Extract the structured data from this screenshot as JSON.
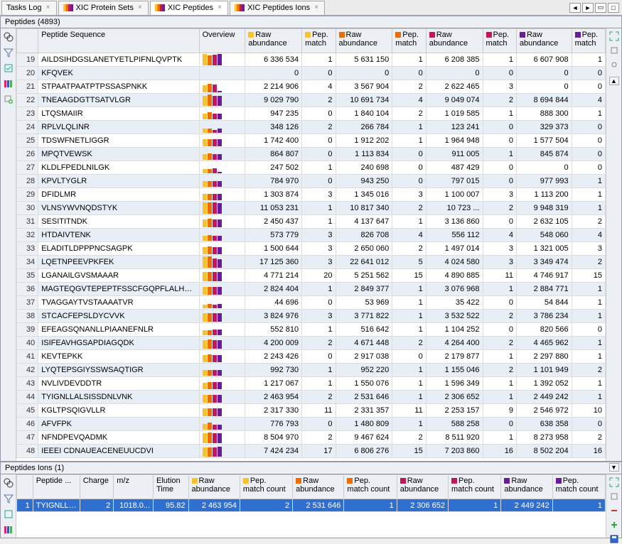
{
  "tabs": [
    {
      "label": "Tasks Log",
      "active": false,
      "icon": false
    },
    {
      "label": "XIC Protein Sets",
      "active": false,
      "icon": true
    },
    {
      "label": "XIC Peptides",
      "active": true,
      "icon": true
    },
    {
      "label": "XIC Peptides Ions",
      "active": false,
      "icon": true
    }
  ],
  "peptides_header": "Peptides (4893)",
  "ions_header": "Peptides Ions (1)",
  "columns": {
    "rownum": "",
    "sequence": "Peptide Sequence",
    "overview": "Overview",
    "raw_abundance": "Raw abundance",
    "pep_match": "Pep. match"
  },
  "markers": {
    "c1": "#fbc02d",
    "c2": "#ef6c00",
    "c3": "#c2185b",
    "c4": "#6a1b9a"
  },
  "rows": [
    {
      "n": 19,
      "seq": "AILDSIHDGSLANETYETLPIFNLQVPTK",
      "ov": [
        16,
        14,
        15,
        16
      ],
      "ra1": "6 336 534",
      "pm1": 1,
      "ra2": "5 631 150",
      "pm2": 1,
      "ra3": "6 208 385",
      "pm3": 1,
      "ra4": "6 607 908",
      "pm4": 1
    },
    {
      "n": 20,
      "seq": "KFQVEK",
      "ov": [
        0,
        0,
        0,
        0
      ],
      "ra1": "0",
      "pm1": 0,
      "ra2": "0",
      "pm2": 0,
      "ra3": "0",
      "pm3": 0,
      "ra4": "0",
      "pm4": 0
    },
    {
      "n": 21,
      "seq": "STPAATPAATPTPSSASPNKK",
      "ov": [
        10,
        12,
        11,
        2
      ],
      "ra1": "2 214 906",
      "pm1": 4,
      "ra2": "3 567 904",
      "pm2": 2,
      "ra3": "2 622 465",
      "pm3": 3,
      "ra4": "0",
      "pm4": 0
    },
    {
      "n": 22,
      "seq": "TNEAAGDGTTSATVLGR",
      "ov": [
        14,
        16,
        14,
        14
      ],
      "ra1": "9 029 790",
      "pm1": 2,
      "ra2": "10 691 734",
      "pm2": 4,
      "ra3": "9 049 074",
      "pm3": 2,
      "ra4": "8 694 844",
      "pm4": 4
    },
    {
      "n": 23,
      "seq": "LTQSMAIIR",
      "ov": [
        8,
        10,
        8,
        8
      ],
      "ra1": "947 235",
      "pm1": 0,
      "ra2": "1 840 104",
      "pm2": 2,
      "ra3": "1 019 585",
      "pm3": 1,
      "ra4": "888 300",
      "pm4": 1
    },
    {
      "n": 24,
      "seq": "RPLVLQLINR",
      "ov": [
        6,
        6,
        4,
        6
      ],
      "ra1": "348 126",
      "pm1": 2,
      "ra2": "266 784",
      "pm2": 1,
      "ra3": "123 241",
      "pm3": 0,
      "ra4": "329 373",
      "pm4": 0
    },
    {
      "n": 25,
      "seq": "TDSWFNETLIGGR",
      "ov": [
        10,
        10,
        10,
        10
      ],
      "ra1": "1 742 400",
      "pm1": 0,
      "ra2": "1 912 202",
      "pm2": 1,
      "ra3": "1 964 948",
      "pm3": 0,
      "ra4": "1 577 504",
      "pm4": 0
    },
    {
      "n": 26,
      "seq": "MPQTVEWSK",
      "ov": [
        8,
        9,
        8,
        8
      ],
      "ra1": "864 807",
      "pm1": 0,
      "ra2": "1 113 834",
      "pm2": 0,
      "ra3": "911 005",
      "pm3": 1,
      "ra4": "845 874",
      "pm4": 0
    },
    {
      "n": 27,
      "seq": "KLDLFPEDLNILGK",
      "ov": [
        6,
        6,
        7,
        2
      ],
      "ra1": "247 502",
      "pm1": 1,
      "ra2": "240 698",
      "pm2": 0,
      "ra3": "487 429",
      "pm3": 0,
      "ra4": "0",
      "pm4": 0
    },
    {
      "n": 28,
      "seq": "KPVLTYGLR",
      "ov": [
        8,
        8,
        8,
        8
      ],
      "ra1": "784 970",
      "pm1": 0,
      "ra2": "943 250",
      "pm2": 0,
      "ra3": "797 015",
      "pm3": 0,
      "ra4": "977 993",
      "pm4": 1
    },
    {
      "n": 29,
      "seq": "DFIDLMR",
      "ov": [
        9,
        9,
        9,
        9
      ],
      "ra1": "1 303 874",
      "pm1": 3,
      "ra2": "1 345 016",
      "pm2": 3,
      "ra3": "1 100 007",
      "pm3": 3,
      "ra4": "1 113 200",
      "pm4": 1
    },
    {
      "n": 30,
      "seq": "VLNSYWVNQDSTYK",
      "ov": [
        16,
        16,
        16,
        15
      ],
      "ra1": "11 053 231",
      "pm1": 1,
      "ra2": "10 817 340",
      "pm2": 2,
      "ra3": "10 723 ...",
      "pm3": 2,
      "ra4": "9 948 319",
      "pm4": 1
    },
    {
      "n": 31,
      "seq": "SESITITNDK",
      "ov": [
        11,
        12,
        11,
        11
      ],
      "ra1": "2 450 437",
      "pm1": 1,
      "ra2": "4 137 647",
      "pm2": 1,
      "ra3": "3 136 860",
      "pm3": 0,
      "ra4": "2 632 105",
      "pm4": 2
    },
    {
      "n": 32,
      "seq": "HTDAIVTENK",
      "ov": [
        7,
        8,
        7,
        7
      ],
      "ra1": "573 779",
      "pm1": 3,
      "ra2": "826 708",
      "pm2": 4,
      "ra3": "556 112",
      "pm3": 4,
      "ra4": "548 060",
      "pm4": 4
    },
    {
      "n": 33,
      "seq": "ELADITLDPPPNCSAGPK",
      "ov": [
        10,
        11,
        10,
        10
      ],
      "ra1": "1 500 644",
      "pm1": 3,
      "ra2": "2 650 060",
      "pm2": 2,
      "ra3": "1 497 014",
      "pm3": 3,
      "ra4": "1 321 005",
      "pm4": 3
    },
    {
      "n": 34,
      "seq": "LQETNPEEVPKFEK",
      "ov": [
        16,
        16,
        13,
        12
      ],
      "ra1": "17 125 360",
      "pm1": 3,
      "ra2": "22 641 012",
      "pm2": 5,
      "ra3": "4 024 580",
      "pm3": 3,
      "ra4": "3 349 474",
      "pm4": 2
    },
    {
      "n": 35,
      "seq": "LGANAILGVSMAAAR",
      "ov": [
        13,
        13,
        13,
        13
      ],
      "ra1": "4 771 214",
      "pm1": 20,
      "ra2": "5 251 562",
      "pm2": 15,
      "ra3": "4 890 885",
      "pm3": 11,
      "ra4": "4 746 917",
      "pm4": 15
    },
    {
      "n": 36,
      "seq": "MAGTEQGVTEPEPTFSSCFGQPFLALHPIR",
      "ov": [
        11,
        11,
        11,
        11
      ],
      "ra1": "2 824 404",
      "pm1": 1,
      "ra2": "2 849 377",
      "pm2": 1,
      "ra3": "3 076 968",
      "pm3": 1,
      "ra4": "2 884 771",
      "pm4": 1
    },
    {
      "n": 37,
      "seq": "TVAGGAYTVSTAAAATVR",
      "ov": [
        5,
        6,
        5,
        6
      ],
      "ra1": "44 696",
      "pm1": 0,
      "ra2": "53 969",
      "pm2": 1,
      "ra3": "35 422",
      "pm3": 0,
      "ra4": "54 844",
      "pm4": 1
    },
    {
      "n": 38,
      "seq": "STCACFEPSLDYCVVK",
      "ov": [
        12,
        12,
        12,
        12
      ],
      "ra1": "3 824 976",
      "pm1": 3,
      "ra2": "3 771 822",
      "pm2": 1,
      "ra3": "3 532 522",
      "pm3": 2,
      "ra4": "3 786 234",
      "pm4": 1
    },
    {
      "n": 39,
      "seq": "EFEAGSQNANLLPIAANEFNLR",
      "ov": [
        7,
        7,
        8,
        8
      ],
      "ra1": "552 810",
      "pm1": 1,
      "ra2": "516 642",
      "pm2": 1,
      "ra3": "1 104 252",
      "pm3": 0,
      "ra4": "820 566",
      "pm4": 0
    },
    {
      "n": 40,
      "seq": "ISIFEAVHGSAPDIAGQDK",
      "ov": [
        12,
        13,
        12,
        12
      ],
      "ra1": "4 200 009",
      "pm1": 2,
      "ra2": "4 671 448",
      "pm2": 2,
      "ra3": "4 264 400",
      "pm3": 2,
      "ra4": "4 465 962",
      "pm4": 1
    },
    {
      "n": 41,
      "seq": "KEVTEPKK",
      "ov": [
        10,
        11,
        10,
        10
      ],
      "ra1": "2 243 426",
      "pm1": 0,
      "ra2": "2 917 038",
      "pm2": 0,
      "ra3": "2 179 877",
      "pm3": 1,
      "ra4": "2 297 880",
      "pm4": 1
    },
    {
      "n": 42,
      "seq": "LYQTEPSGIYSSWSAQTIGR",
      "ov": [
        8,
        8,
        8,
        8
      ],
      "ra1": "992 730",
      "pm1": 1,
      "ra2": "952 220",
      "pm2": 1,
      "ra3": "1 155 046",
      "pm3": 2,
      "ra4": "1 101 949",
      "pm4": 2
    },
    {
      "n": 43,
      "seq": "NVLIVDEVDDTR",
      "ov": [
        9,
        10,
        10,
        10
      ],
      "ra1": "1 217 067",
      "pm1": 1,
      "ra2": "1 550 076",
      "pm2": 1,
      "ra3": "1 596 349",
      "pm3": 1,
      "ra4": "1 392 052",
      "pm4": 1
    },
    {
      "n": 44,
      "seq": "TYIGNLLALSISSDNLVNK",
      "ov": [
        11,
        11,
        11,
        11
      ],
      "ra1": "2 463 954",
      "pm1": 2,
      "ra2": "2 531 646",
      "pm2": 1,
      "ra3": "2 306 652",
      "pm3": 1,
      "ra4": "2 449 242",
      "pm4": 1
    },
    {
      "n": 45,
      "seq": "KGLTPSQIGVLLR",
      "ov": [
        11,
        11,
        11,
        11
      ],
      "ra1": "2 317 330",
      "pm1": 11,
      "ra2": "2 331 357",
      "pm2": 11,
      "ra3": "2 253 157",
      "pm3": 9,
      "ra4": "2 546 972",
      "pm4": 10
    },
    {
      "n": 46,
      "seq": "AFVFPK",
      "ov": [
        8,
        10,
        7,
        7
      ],
      "ra1": "776 793",
      "pm1": 0,
      "ra2": "1 480 809",
      "pm2": 1,
      "ra3": "588 258",
      "pm3": 0,
      "ra4": "638 358",
      "pm4": 0
    },
    {
      "n": 47,
      "seq": "NFNDPEVQADMK",
      "ov": [
        14,
        15,
        14,
        14
      ],
      "ra1": "8 504 970",
      "pm1": 2,
      "ra2": "9 467 624",
      "pm2": 2,
      "ra3": "8 511 920",
      "pm3": 1,
      "ra4": "8 273 958",
      "pm4": 2
    },
    {
      "n": 48,
      "seq": "IEEEI CDNAUEACENEUUCDVI",
      "ov": [
        13,
        13,
        13,
        14
      ],
      "ra1": "7 424 234",
      "pm1": 17,
      "ra2": "6 806 276",
      "pm2": 15,
      "ra3": "7 203 860",
      "pm3": 16,
      "ra4": "8 502 204",
      "pm4": 16
    }
  ],
  "ions_columns": [
    "",
    "Peptide ...",
    "Charge",
    "m/z",
    "Elution Time",
    "Raw abundance",
    "Pep. match count",
    "Raw abundance",
    "Pep. match count",
    "Raw abundance",
    "Pep. match count",
    "Raw abundance",
    "Pep. match count"
  ],
  "ions_row": {
    "n": 1,
    "peptide": "TYIGNLLA...",
    "charge": 2,
    "mz": "1018.0...",
    "elution": "95.82",
    "ra1": "2 463 954",
    "pm1": 2,
    "ra2": "2 531 646",
    "pm2": 1,
    "ra3": "2 306 652",
    "pm3": 1,
    "ra4": "2 449 242",
    "pm4": 1
  }
}
